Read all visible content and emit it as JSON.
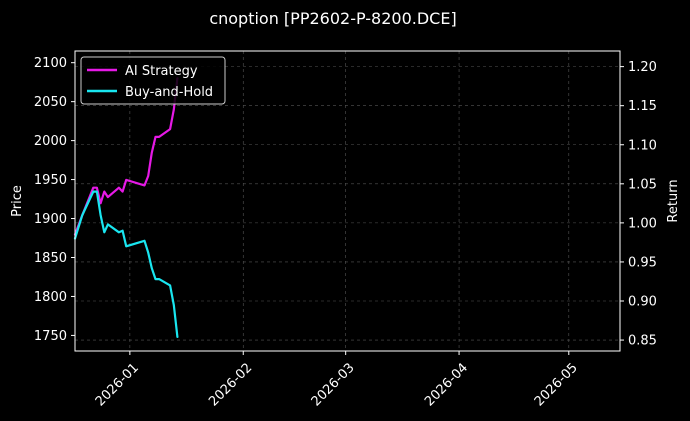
{
  "chart_data": {
    "type": "line",
    "title": "cnoption [PP2602-P-8200.DCE]",
    "ylabel_left": "Price",
    "ylabel_right": "Return",
    "x_axis": {
      "type": "date",
      "range": [
        "2025-12-17",
        "2026-05-15"
      ],
      "ticks": [
        "2026-01-01",
        "2026-02-01",
        "2026-03-01",
        "2026-04-01",
        "2026-05-01"
      ],
      "tick_labels": [
        "2026-01",
        "2026-02",
        "2026-03",
        "2026-04",
        "2026-05"
      ]
    },
    "y_left": {
      "range": [
        1730,
        2115
      ],
      "ticks": [
        1750,
        1800,
        1850,
        1900,
        1950,
        2000,
        2050,
        2100
      ],
      "tick_labels": [
        "1750",
        "1800",
        "1850",
        "1900",
        "1950",
        "2000",
        "2050",
        "2100"
      ]
    },
    "y_right": {
      "range": [
        0.836,
        1.22
      ],
      "ticks": [
        0.85,
        0.9,
        0.95,
        1.0,
        1.05,
        1.1,
        1.15,
        1.2
      ],
      "tick_labels": [
        "0.85",
        "0.90",
        "0.95",
        "1.00",
        "1.05",
        "1.10",
        "1.15",
        "1.20"
      ]
    },
    "grid": true,
    "legend_position": "top-left",
    "series": [
      {
        "name": "AI Strategy",
        "color": "#e619e6",
        "axis": "right",
        "x": [
          "2025-12-17",
          "2025-12-19",
          "2025-12-22",
          "2025-12-23",
          "2025-12-24",
          "2025-12-25",
          "2025-12-26",
          "2025-12-29",
          "2025-12-30",
          "2025-12-31",
          "2026-01-05",
          "2026-01-06",
          "2026-01-07",
          "2026-01-08",
          "2026-01-09",
          "2026-01-12",
          "2026-01-13",
          "2026-01-14"
        ],
        "y": [
          0.985,
          1.01,
          1.045,
          1.045,
          1.025,
          1.04,
          1.033,
          1.045,
          1.04,
          1.055,
          1.048,
          1.06,
          1.09,
          1.11,
          1.11,
          1.12,
          1.145,
          1.185
        ]
      },
      {
        "name": "Buy-and-Hold",
        "color": "#19e6f0",
        "axis": "right",
        "x": [
          "2025-12-17",
          "2025-12-19",
          "2025-12-22",
          "2025-12-23",
          "2025-12-24",
          "2025-12-25",
          "2025-12-26",
          "2025-12-29",
          "2025-12-30",
          "2025-12-31",
          "2026-01-05",
          "2026-01-06",
          "2026-01-07",
          "2026-01-08",
          "2026-01-09",
          "2026-01-12",
          "2026-01-13",
          "2026-01-14"
        ],
        "y": [
          0.98,
          1.01,
          1.04,
          1.04,
          1.01,
          0.988,
          0.998,
          0.988,
          0.99,
          0.97,
          0.977,
          0.962,
          0.942,
          0.928,
          0.928,
          0.92,
          0.895,
          0.854
        ]
      }
    ]
  }
}
